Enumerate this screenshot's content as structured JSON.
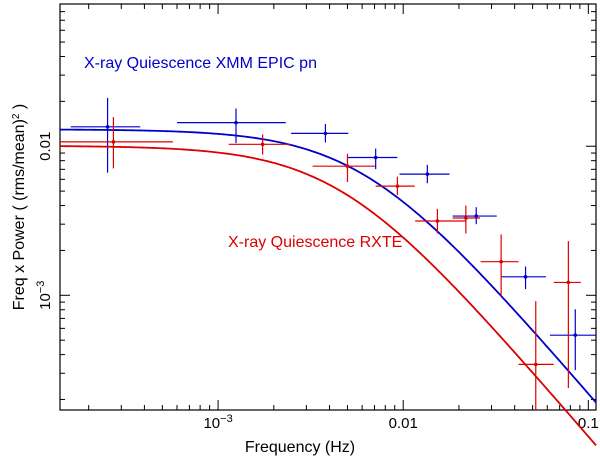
{
  "chart_data": {
    "type": "scatter",
    "title": "",
    "xlabel": "Frequency (Hz)",
    "ylabel_prefix": "Freq x Power ( (rms/mean)",
    "ylabel_exp": "2",
    "ylabel_suffix": " )",
    "xscale": "log",
    "yscale": "log",
    "xlim": [
      0.00014,
      0.11
    ],
    "ylim": [
      0.00017,
      0.09
    ],
    "x_ticks": [
      {
        "value": 0.001,
        "mantissa": "10",
        "exp": "−3"
      },
      {
        "value": 0.01,
        "label": "0.01"
      },
      {
        "value": 0.1,
        "label": "0.1"
      }
    ],
    "y_ticks": [
      {
        "value": 0.001,
        "mantissa": "10",
        "exp": "−3"
      },
      {
        "value": 0.01,
        "label": "0.01"
      }
    ],
    "series": [
      {
        "name": "X-ray Quiescence XMM EPIC pn",
        "color": "#0000cc",
        "model": {
          "norm": 0.01299,
          "f_break": 0.00605,
          "slope": 1.45
        },
        "points": [
          {
            "x": 0.000253,
            "xlo": 0.00016,
            "xhi": 0.00038,
            "y": 0.0135,
            "ylo": 0.00665,
            "yhi": 0.0211
          },
          {
            "x": 0.00125,
            "xlo": 0.0006,
            "xhi": 0.00232,
            "y": 0.0144,
            "ylo": 0.0105,
            "yhi": 0.0179
          },
          {
            "x": 0.0038,
            "xlo": 0.00248,
            "xhi": 0.00505,
            "y": 0.0122,
            "ylo": 0.0106,
            "yhi": 0.0141
          },
          {
            "x": 0.0071,
            "xlo": 0.00502,
            "xhi": 0.0093,
            "y": 0.0084,
            "ylo": 0.00702,
            "yhi": 0.00965
          },
          {
            "x": 0.0135,
            "xlo": 0.00955,
            "xhi": 0.0178,
            "y": 0.0065,
            "ylo": 0.00565,
            "yhi": 0.0075
          },
          {
            "x": 0.0248,
            "xlo": 0.0185,
            "xhi": 0.032,
            "y": 0.0034,
            "ylo": 0.003,
            "yhi": 0.0039
          },
          {
            "x": 0.0458,
            "xlo": 0.034,
            "xhi": 0.059,
            "y": 0.00133,
            "ylo": 0.0011,
            "yhi": 0.00156
          },
          {
            "x": 0.085,
            "xlo": 0.062,
            "xhi": 0.11,
            "y": 0.00054,
            "ylo": 0.000315,
            "yhi": 0.000806
          }
        ]
      },
      {
        "name": "X-ray Quiescence RXTE",
        "color": "#dd0000",
        "model": {
          "norm": 0.01008,
          "f_break": 0.00455,
          "slope": 1.45
        },
        "points": [
          {
            "x": 0.000272,
            "xlo": 0.00014,
            "xhi": 0.00057,
            "y": 0.0107,
            "ylo": 0.0071,
            "yhi": 0.0157
          },
          {
            "x": 0.00174,
            "xlo": 0.00114,
            "xhi": 0.00246,
            "y": 0.0103,
            "ylo": 0.0088,
            "yhi": 0.012
          },
          {
            "x": 0.005,
            "xlo": 0.00324,
            "xhi": 0.00705,
            "y": 0.00735,
            "ylo": 0.00575,
            "yhi": 0.0089
          },
          {
            "x": 0.0093,
            "xlo": 0.0071,
            "xhi": 0.01155,
            "y": 0.0054,
            "ylo": 0.0047,
            "yhi": 0.00625
          },
          {
            "x": 0.0153,
            "xlo": 0.0116,
            "xhi": 0.0217,
            "y": 0.00315,
            "ylo": 0.0026,
            "yhi": 0.0038
          },
          {
            "x": 0.0218,
            "xlo": 0.0185,
            "xhi": 0.026,
            "y": 0.0033,
            "ylo": 0.0026,
            "yhi": 0.004
          },
          {
            "x": 0.0338,
            "xlo": 0.0262,
            "xhi": 0.042,
            "y": 0.00168,
            "ylo": 0.000983,
            "yhi": 0.00256
          },
          {
            "x": 0.052,
            "xlo": 0.042,
            "xhi": 0.065,
            "y": 0.000344,
            "ylo": 0.00017,
            "yhi": 0.000914
          },
          {
            "x": 0.078,
            "xlo": 0.065,
            "xhi": 0.091,
            "y": 0.00122,
            "ylo": 0.000239,
            "yhi": 0.00231
          }
        ]
      }
    ]
  }
}
